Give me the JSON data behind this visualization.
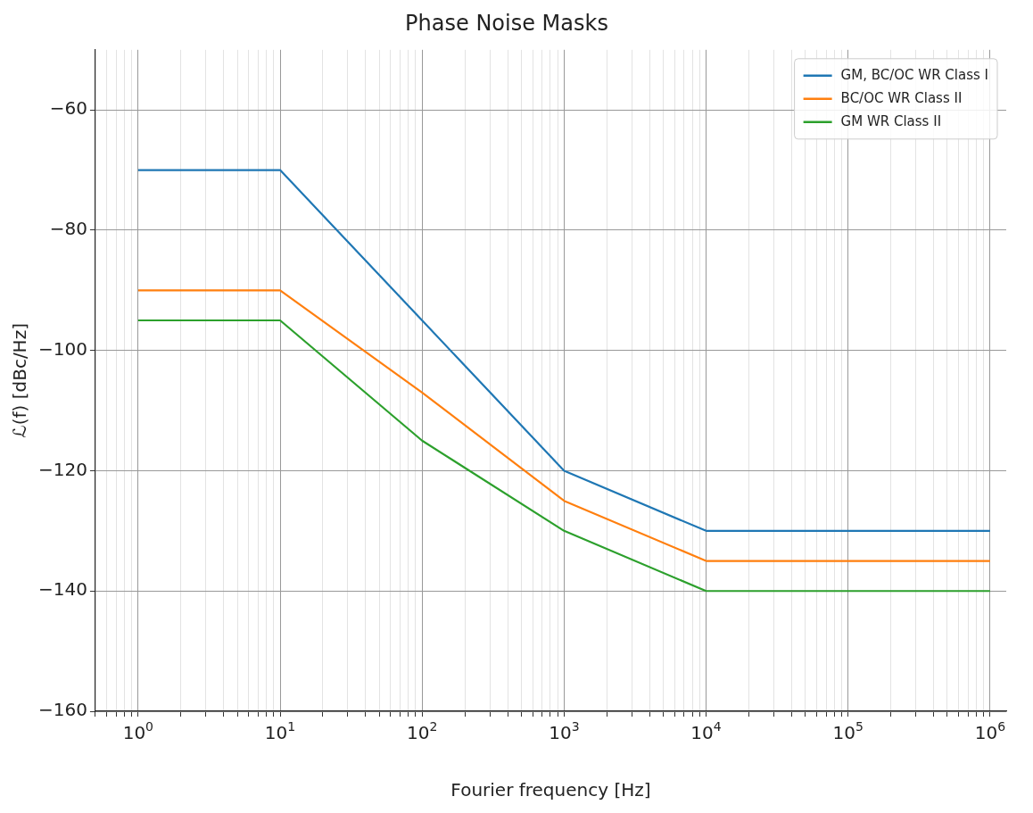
{
  "chart_data": {
    "type": "line",
    "title": "Phase Noise Masks",
    "xlabel": "Fourier frequency [Hz]",
    "ylabel": "ℒ(f) [dBc/Hz]",
    "x": [
      1,
      10,
      100,
      1000,
      10000,
      1000000
    ],
    "series": [
      {
        "name": "GM, BC/OC WR Class I",
        "color": "#1f77b4",
        "values": [
          -70,
          -70,
          -95,
          -120,
          -130,
          -130
        ]
      },
      {
        "name": "BC/OC WR Class II",
        "color": "#ff7f0e",
        "values": [
          -90,
          -90,
          -107,
          -125,
          -135,
          -135
        ]
      },
      {
        "name": "GM WR Class II",
        "color": "#2ca02c",
        "values": [
          -95,
          -95,
          -115,
          -130,
          -140,
          -140
        ]
      }
    ],
    "log": "x",
    "xlim": [
      0.5,
      1300000
    ],
    "xticks": [
      {
        "value": 1,
        "label": "10$^{0}$"
      },
      {
        "value": 10,
        "label": "10$^{1}$"
      },
      {
        "value": 100,
        "label": "10$^{2}$"
      },
      {
        "value": 1000,
        "label": "10$^{3}$"
      },
      {
        "value": 10000,
        "label": "10$^{4}$"
      },
      {
        "value": 100000,
        "label": "10$^{5}$"
      },
      {
        "value": 1000000,
        "label": "10$^{6}$"
      }
    ],
    "ylim": [
      -160,
      -50
    ],
    "yticks": [
      -160,
      -140,
      -120,
      -100,
      -80,
      -60
    ],
    "grid": true,
    "legend": "top right",
    "marker": "none",
    "line_style": "solid"
  }
}
